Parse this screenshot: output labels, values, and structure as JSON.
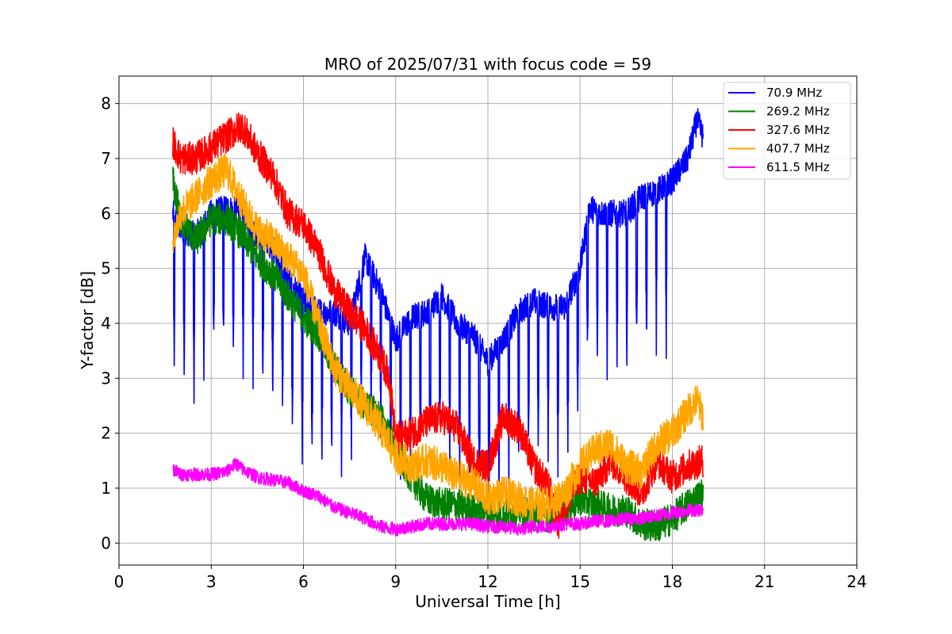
{
  "chart_data": {
    "type": "line",
    "title": "MRO of 2025/07/31 with focus code = 59",
    "xlabel": "Universal Time [h]",
    "ylabel": "Y-factor [dB]",
    "xlim": [
      0,
      24
    ],
    "ylim": [
      -0.4,
      8.5
    ],
    "xticks": [
      0,
      3,
      6,
      9,
      12,
      15,
      18,
      21,
      24
    ],
    "yticks": [
      0,
      1,
      2,
      3,
      4,
      5,
      6,
      7,
      8
    ],
    "grid": true,
    "legend_position": "top-right",
    "series": [
      {
        "name": " 70.9 MHz",
        "color": "#0000ff",
        "noise": 0.25,
        "spikes": {
          "start": 1.78,
          "end": 17.9,
          "period": 0.32,
          "width": 0.04,
          "floor_offset": -2.9
        },
        "x": [
          1.75,
          2.0,
          2.5,
          3.0,
          3.5,
          4.0,
          4.5,
          5.0,
          5.5,
          6.0,
          6.5,
          7.0,
          7.5,
          8.0,
          8.5,
          9.0,
          9.5,
          10.0,
          10.5,
          11.0,
          11.5,
          12.0,
          12.5,
          13.0,
          13.5,
          14.0,
          14.5,
          15.0,
          15.3,
          15.7,
          16.0,
          16.5,
          17.0,
          17.5,
          18.0,
          18.5,
          18.8,
          19.0
        ],
        "y": [
          6.0,
          5.7,
          5.6,
          6.0,
          6.1,
          6.0,
          5.6,
          5.4,
          4.8,
          4.4,
          4.2,
          4.2,
          4.0,
          5.2,
          4.6,
          3.7,
          4.1,
          4.2,
          4.5,
          4.0,
          3.8,
          3.3,
          3.7,
          4.2,
          4.4,
          4.3,
          4.3,
          5.0,
          6.1,
          6.0,
          6.0,
          6.0,
          6.3,
          6.4,
          6.6,
          7.0,
          7.7,
          7.4
        ]
      },
      {
        "name": "269.2 MHz",
        "color": "#008000",
        "noise": 0.3,
        "x": [
          1.75,
          2.0,
          2.5,
          3.0,
          3.5,
          4.0,
          4.5,
          5.0,
          5.5,
          6.0,
          6.5,
          7.0,
          7.5,
          8.0,
          8.5,
          9.0,
          9.5,
          10.0,
          10.5,
          11.0,
          11.5,
          12.0,
          12.5,
          13.0,
          13.5,
          14.0,
          14.5,
          15.0,
          15.5,
          16.0,
          16.5,
          17.0,
          17.5,
          18.0,
          18.5,
          19.0
        ],
        "y": [
          6.6,
          5.9,
          5.5,
          5.9,
          5.9,
          5.6,
          5.2,
          4.9,
          4.5,
          4.1,
          3.8,
          3.2,
          2.8,
          2.5,
          2.3,
          1.7,
          1.2,
          0.8,
          0.7,
          0.7,
          0.6,
          0.6,
          0.5,
          0.6,
          0.5,
          0.5,
          0.6,
          0.8,
          0.7,
          0.6,
          0.6,
          0.35,
          0.3,
          0.45,
          0.7,
          0.9
        ]
      },
      {
        "name": "327.6 MHz",
        "color": "#ff0000",
        "noise": 0.3,
        "x": [
          1.75,
          2.0,
          2.5,
          3.0,
          3.5,
          4.0,
          4.5,
          5.0,
          5.5,
          6.0,
          6.5,
          7.0,
          7.5,
          8.0,
          8.5,
          8.8,
          9.0,
          9.5,
          10.0,
          10.5,
          11.0,
          11.5,
          12.0,
          12.5,
          13.0,
          13.5,
          14.0,
          14.3,
          14.5,
          15.0,
          15.5,
          16.0,
          16.5,
          17.0,
          17.5,
          18.0,
          18.5,
          19.0
        ],
        "y": [
          7.3,
          7.0,
          7.0,
          7.2,
          7.4,
          7.6,
          7.1,
          6.7,
          6.0,
          5.8,
          5.3,
          4.6,
          4.2,
          3.9,
          3.4,
          3.0,
          1.9,
          2.0,
          2.2,
          2.3,
          2.1,
          1.5,
          1.4,
          2.3,
          2.1,
          1.4,
          1.0,
          0.3,
          0.7,
          1.2,
          1.1,
          1.5,
          1.2,
          0.9,
          1.5,
          1.2,
          1.4,
          1.5
        ]
      },
      {
        "name": "407.7 MHz",
        "color": "#ffa500",
        "noise": 0.32,
        "x": [
          1.75,
          2.0,
          2.5,
          3.0,
          3.5,
          4.0,
          4.5,
          5.0,
          5.5,
          6.0,
          6.5,
          7.0,
          7.5,
          8.0,
          8.5,
          9.0,
          9.5,
          10.0,
          10.5,
          11.0,
          11.5,
          12.0,
          12.5,
          13.0,
          13.5,
          14.0,
          14.5,
          15.0,
          15.5,
          16.0,
          16.5,
          17.0,
          17.5,
          18.0,
          18.5,
          18.8,
          19.0
        ],
        "y": [
          5.5,
          6.0,
          6.3,
          6.6,
          6.8,
          6.2,
          5.7,
          5.5,
          5.2,
          4.9,
          4.0,
          3.2,
          2.8,
          2.5,
          2.1,
          1.6,
          1.4,
          1.5,
          1.4,
          1.2,
          1.1,
          0.8,
          0.9,
          0.8,
          0.7,
          0.7,
          0.9,
          1.4,
          1.7,
          1.8,
          1.4,
          1.3,
          1.8,
          2.0,
          2.4,
          2.6,
          2.3
        ]
      },
      {
        "name": "611.5 MHz",
        "color": "#ff00ff",
        "noise": 0.12,
        "x": [
          1.75,
          2.0,
          2.5,
          3.0,
          3.5,
          3.8,
          4.0,
          4.5,
          5.0,
          5.5,
          6.0,
          6.5,
          7.0,
          7.5,
          8.0,
          8.5,
          9.0,
          9.5,
          10.0,
          10.5,
          11.0,
          11.5,
          12.0,
          12.5,
          13.0,
          13.5,
          14.0,
          14.5,
          15.0,
          15.5,
          16.0,
          16.5,
          17.0,
          17.5,
          18.0,
          18.5,
          19.0
        ],
        "y": [
          1.35,
          1.25,
          1.25,
          1.25,
          1.3,
          1.45,
          1.35,
          1.2,
          1.15,
          1.1,
          0.95,
          0.85,
          0.65,
          0.55,
          0.45,
          0.3,
          0.25,
          0.3,
          0.35,
          0.35,
          0.35,
          0.35,
          0.3,
          0.3,
          0.25,
          0.3,
          0.3,
          0.35,
          0.35,
          0.4,
          0.4,
          0.45,
          0.45,
          0.5,
          0.55,
          0.6,
          0.6
        ]
      }
    ]
  }
}
